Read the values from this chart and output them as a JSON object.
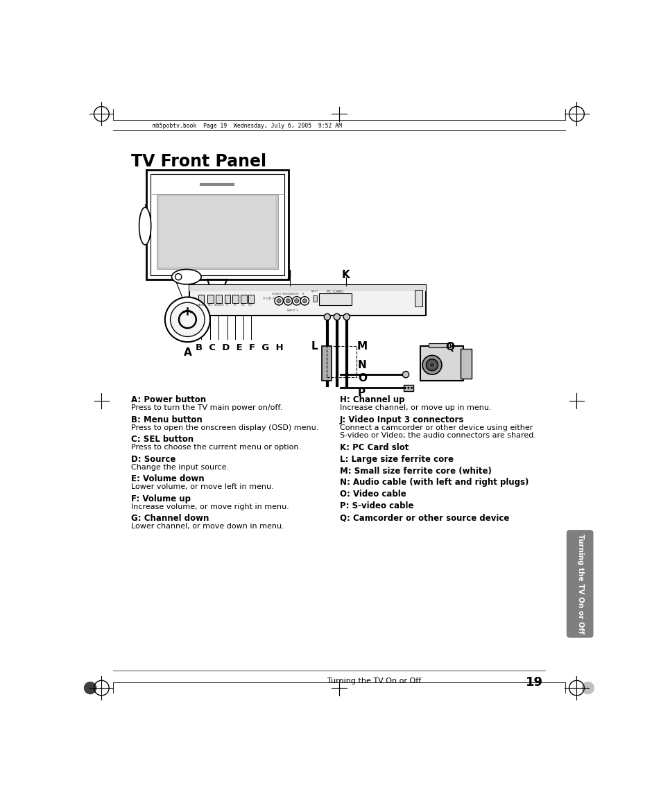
{
  "title": "TV Front Panel",
  "header_text": "mb5pobtv.book  Page 19  Wednesday, July 6, 2005  9:52 AM",
  "bg_color": "#ffffff",
  "left_column": [
    {
      "label": "A: Power button",
      "desc": "Press to turn the TV main power on/off."
    },
    {
      "label": "B: Menu button",
      "desc": "Press to open the onscreen display (OSD) menu."
    },
    {
      "label": "C: SEL button",
      "desc": "Press to choose the current menu or option."
    },
    {
      "label": "D: Source",
      "desc": "Change the input source."
    },
    {
      "label": "E: Volume down",
      "desc": "Lower volume, or move left in menu."
    },
    {
      "label": "F: Volume up",
      "desc": "Increase volume, or move right in menu."
    },
    {
      "label": "G: Channel down",
      "desc": "Lower channel, or move down in menu."
    }
  ],
  "right_column": [
    {
      "label": "H: Channel up",
      "desc": "Increase channel, or move up in menu."
    },
    {
      "label": "J: Video Input 3 connectors",
      "desc": "Connect a camcorder or other device using either\nS-video or Video; the audio connectors are shared."
    },
    {
      "label": "K: PC Card slot",
      "desc": ""
    },
    {
      "label": "L: Large size ferrite core",
      "desc": ""
    },
    {
      "label": "M: Small size ferrite core (white)",
      "desc": ""
    },
    {
      "label": "N: Audio cable (with left and right plugs)",
      "desc": ""
    },
    {
      "label": "O: Video cable",
      "desc": ""
    },
    {
      "label": "P: S-video cable",
      "desc": ""
    },
    {
      "label": "Q: Camcorder or other source device",
      "desc": ""
    }
  ],
  "sidebar_text": "Turning the TV On or Off",
  "footer_text": "Turning the TV On or Off",
  "page_number": "19",
  "tab_color": "#7f7f7f",
  "margin_line_color": "#000000",
  "text_color": "#000000"
}
